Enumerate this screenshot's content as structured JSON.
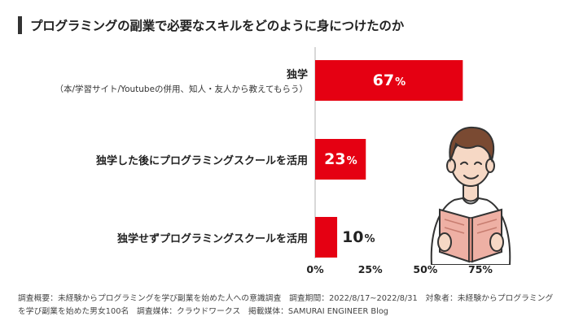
{
  "title": "プログラミングの副業で必要なスキルをどのように身につけたのか",
  "colors": {
    "bar": "#e50012",
    "axis": "#cccccc",
    "title_bar": "#333333"
  },
  "chart_data": {
    "type": "bar",
    "orientation": "horizontal",
    "categories": [
      {
        "label": "独学",
        "sublabel": "（本/学習サイト/Youtubeの併用、知人・友人から教えてもらう）"
      },
      {
        "label": "独学した後にプログラミングスクールを活用",
        "sublabel": ""
      },
      {
        "label": "独学せずプログラミングスクールを活用",
        "sublabel": ""
      }
    ],
    "values": [
      67,
      23,
      10
    ],
    "value_labels": [
      "67",
      "23",
      "10"
    ],
    "unit": "%",
    "xlim": [
      0,
      75
    ],
    "xticks": [
      "0%",
      "25%",
      "50%",
      "75%"
    ],
    "grid": false
  },
  "footer": "調査概要：未経験からプログラミングを学び副業を始めた人への意識調査　調査期間：2022/8/17~2022/8/31　対象者：未経験からプログラミングを学び副業を始めた男女100名　調査媒体：クラウドワークス　掲載媒体：SAMURAI ENGINEER Blog",
  "illustration": "person-reading-book-icon"
}
